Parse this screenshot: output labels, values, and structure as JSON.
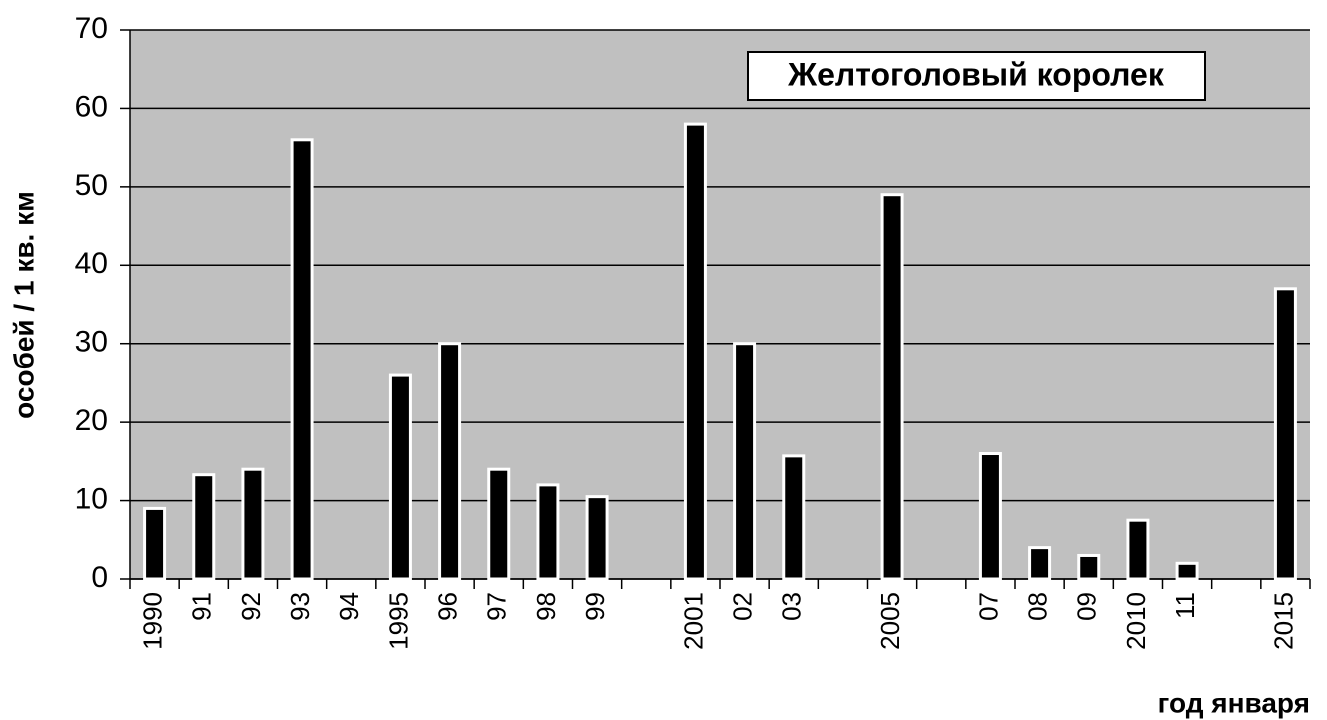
{
  "chart_data": {
    "type": "bar",
    "title": "Желтоголовый королек",
    "y_label": "особей / 1 кв. км",
    "x_label": "год января",
    "categories": [
      "1990",
      "91",
      "92",
      "93",
      "94",
      "1995",
      "96",
      "97",
      "98",
      "99",
      null,
      "2001",
      "02",
      "03",
      null,
      "2005",
      null,
      "07",
      "08",
      "09",
      "2010",
      "11",
      null,
      "2015"
    ],
    "values": [
      9,
      13.3,
      14,
      56,
      null,
      26,
      30,
      14,
      12,
      10.5,
      null,
      58,
      30,
      15.7,
      null,
      49,
      null,
      16,
      4,
      3,
      7.5,
      2,
      null,
      37
    ],
    "color": "#000000",
    "ylim": [
      0,
      70
    ],
    "yticks": [
      0,
      10,
      20,
      30,
      40,
      50,
      60,
      70
    ],
    "grid": true
  }
}
